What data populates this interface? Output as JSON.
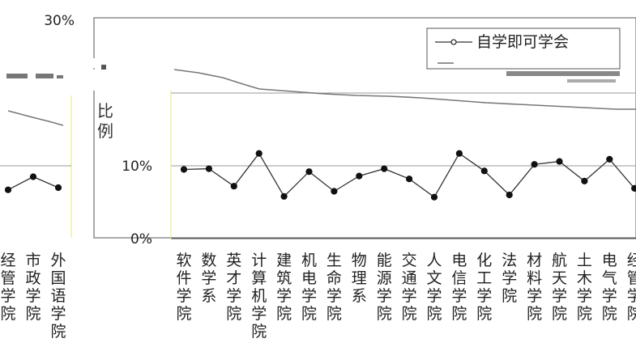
{
  "chart_data": {
    "type": "line",
    "ylabel": "比例",
    "ylim": [
      0,
      30
    ],
    "yticks": [
      "0%",
      "10%",
      "30%"
    ],
    "grid": true,
    "legend_position": "top-right",
    "series": [
      {
        "name": "自学即可学会",
        "color": "#222222"
      },
      {
        "name": ""
      }
    ],
    "left_panel": {
      "categories": [
        "经管学院",
        "市政学院",
        "外国语学院"
      ],
      "values": [
        6.7,
        8.5,
        7.0
      ]
    },
    "categories": [
      "软件学院",
      "数学系",
      "英才学院",
      "计算机学院",
      "建筑学院",
      "机电学院",
      "生命学院",
      "物理系",
      "能源学院",
      "交通学院",
      "人文学院",
      "电信学院",
      "化工学院",
      "法学院",
      "材料学院",
      "航天学院",
      "土木学院",
      "电气学院",
      "经管学院"
    ],
    "values": [
      9.5,
      9.6,
      7.2,
      11.7,
      5.8,
      9.2,
      6.5,
      8.6,
      9.6,
      8.2,
      5.7,
      11.7,
      9.3,
      6.0,
      10.2,
      10.6,
      7.9,
      10.9,
      6.9
    ]
  }
}
